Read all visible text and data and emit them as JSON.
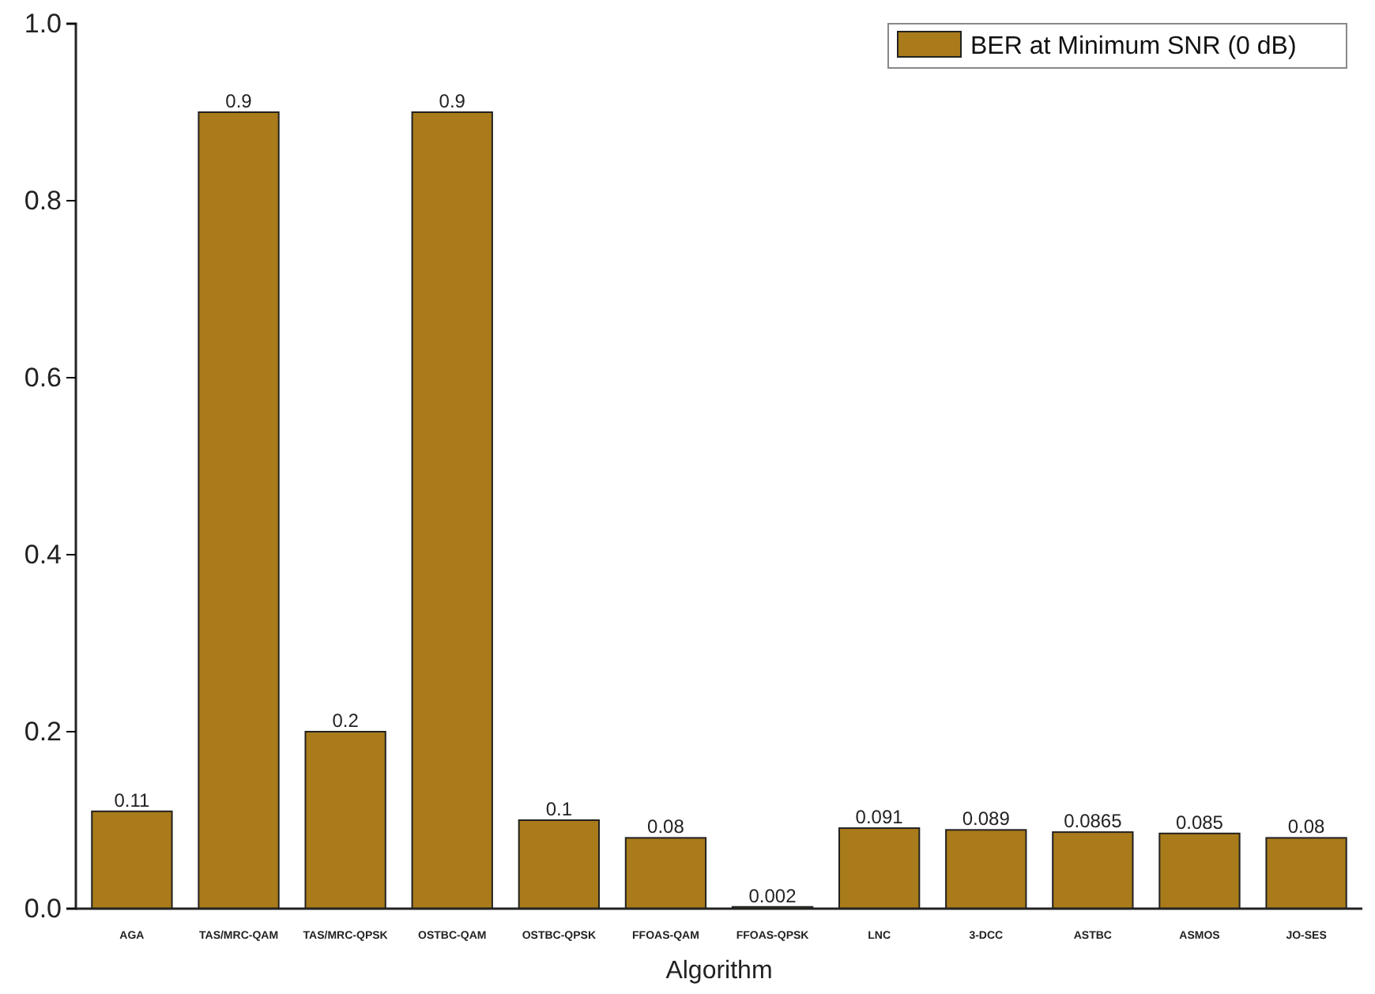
{
  "chart_data": {
    "type": "bar",
    "xlabel": "Algorithm",
    "categories": [
      "AGA",
      "TAS/MRC-QAM",
      "TAS/MRC-QPSK",
      "OSTBC-QAM",
      "OSTBC-QPSK",
      "FFOAS-QAM",
      "FFOAS-QPSK",
      "LNC",
      "3-DCC",
      "ASTBC",
      "ASMOS",
      "JO-SES"
    ],
    "series": [
      {
        "name": "BER at Minimum SNR (0 dB)",
        "color": "#a97b1a",
        "values": [
          0.11,
          0.9,
          0.2,
          0.9,
          0.1,
          0.08,
          0.002,
          0.091,
          0.089,
          0.0865,
          0.085,
          0.08
        ]
      }
    ],
    "ylim": [
      0,
      1
    ],
    "yticks": [
      {
        "value": 0,
        "label": "0.0"
      },
      {
        "value": 0.2,
        "label": "0.2"
      },
      {
        "value": 0.4,
        "label": "0.4"
      },
      {
        "value": 0.6,
        "label": "0.6"
      },
      {
        "value": 0.8,
        "label": "0.8"
      },
      {
        "value": 1,
        "label": "1.0"
      }
    ],
    "data_labels": true,
    "legend": "top right",
    "grid": false
  }
}
